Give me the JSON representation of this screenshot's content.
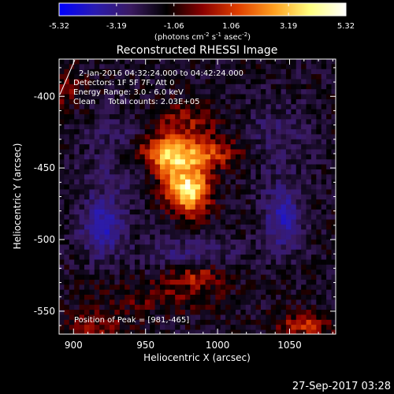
{
  "colorbar": {
    "ticks": [
      "-5.32",
      "-3.19",
      "-1.06",
      "1.06",
      "3.19",
      "5.32"
    ],
    "tick_values": [
      -5.32,
      -3.19,
      -1.06,
      1.06,
      3.19,
      5.32
    ],
    "range": [
      -5.32,
      5.32
    ],
    "units_prefix": "(photons cm",
    "units_exp1": "-2",
    "units_mid": " s",
    "units_exp2": "-1",
    "units_mid2": " asec",
    "units_exp3": "-2",
    "units_suffix": ")",
    "stops": [
      "#0000ff",
      "#2a1bb0",
      "#3a1a60",
      "#000000",
      "#8a0000",
      "#e04000",
      "#ffa020",
      "#ffff80",
      "#ffffff"
    ]
  },
  "plot": {
    "title": "Reconstructed RHESSI Image",
    "info_lines": [
      "2-Jan-2016 04:32:24.000 to 04:42:24.000",
      "Detectors: 1F 5F 7F, Att 0",
      "Energy Range: 3.0 - 6.0 keV",
      "Clean     Total counts: 2.03E+05"
    ],
    "peak_label": "Position of Peak = [981,-465]",
    "timestamp": "27-Sep-2017 03:28"
  },
  "chart_data": {
    "type": "heatmap",
    "title": "Reconstructed RHESSI Image",
    "xlabel": "Heliocentric X (arcsec)",
    "ylabel": "Heliocentric Y (arcsec)",
    "xlim": [
      890,
      1082
    ],
    "ylim": [
      -566,
      -374
    ],
    "xticks": [
      900,
      950,
      1000,
      1050
    ],
    "yticks": [
      -400,
      -450,
      -500,
      -550
    ],
    "xtick_labels": [
      "900",
      "950",
      "1000",
      "1050"
    ],
    "ytick_labels": [
      "-400",
      "-450",
      "-500",
      "-550"
    ],
    "grid": false,
    "colorscale": "blue-black-red-yellow-white",
    "value_range": [
      -5.32,
      5.32
    ],
    "peak": {
      "x": 981,
      "y": -465,
      "value": 5.32
    },
    "features": [
      {
        "x": 981,
        "y": -465,
        "amplitude": 5.3,
        "sigma_x": 9,
        "sigma_y": 12
      },
      {
        "x": 975,
        "y": -440,
        "amplitude": 3.6,
        "sigma_x": 26,
        "sigma_y": 8
      },
      {
        "x": 966,
        "y": -452,
        "amplitude": 2.0,
        "sigma_x": 7,
        "sigma_y": 14
      },
      {
        "x": 978,
        "y": -418,
        "amplitude": 1.6,
        "sigma_x": 16,
        "sigma_y": 10
      },
      {
        "x": 985,
        "y": -525,
        "amplitude": 1.9,
        "sigma_x": 14,
        "sigma_y": 6
      },
      {
        "x": 960,
        "y": -540,
        "amplitude": 1.0,
        "sigma_x": 30,
        "sigma_y": 8
      },
      {
        "x": 1060,
        "y": -560,
        "amplitude": 2.2,
        "sigma_x": 14,
        "sigma_y": 6
      },
      {
        "x": 915,
        "y": -560,
        "amplitude": 1.6,
        "sigma_x": 16,
        "sigma_y": 6
      },
      {
        "x": 920,
        "y": -490,
        "amplitude": -2.8,
        "sigma_x": 10,
        "sigma_y": 14
      },
      {
        "x": 1045,
        "y": -485,
        "amplitude": -2.6,
        "sigma_x": 9,
        "sigma_y": 16
      },
      {
        "x": 930,
        "y": -440,
        "amplitude": -1.2,
        "sigma_x": 16,
        "sigma_y": 18
      },
      {
        "x": 1040,
        "y": -430,
        "amplitude": -1.0,
        "sigma_x": 16,
        "sigma_y": 18
      },
      {
        "x": 980,
        "y": -510,
        "amplitude": -1.4,
        "sigma_x": 24,
        "sigma_y": 8
      },
      {
        "x": 895,
        "y": -395,
        "amplitude": 1.2,
        "sigma_x": 10,
        "sigma_y": 10
      }
    ],
    "background_level": -0.5
  }
}
